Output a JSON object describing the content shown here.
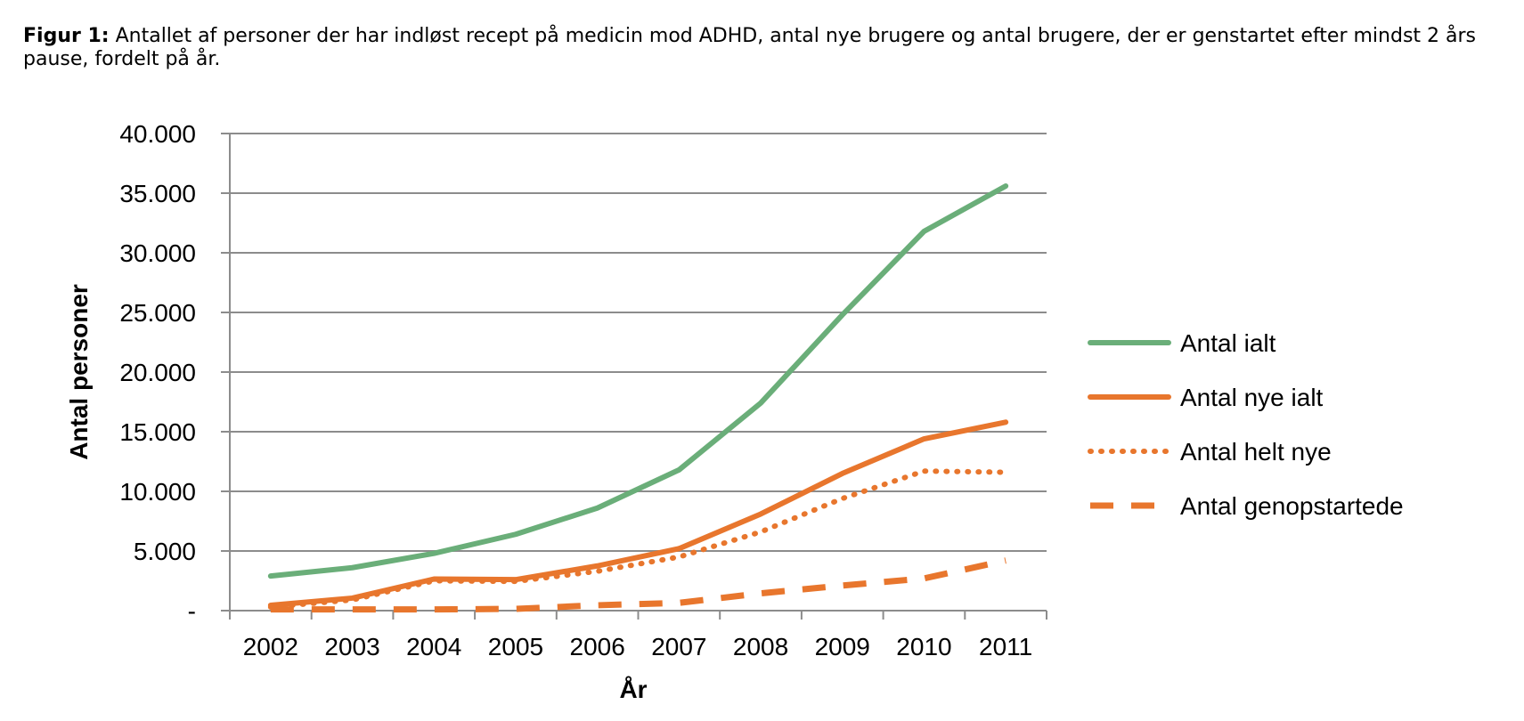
{
  "caption": {
    "label": "Figur 1:",
    "text": "Antallet af personer der har indløst recept på medicin mod ADHD, antal nye brugere og antal brugere, der er genstartet efter mindst 2 års pause, fordelt på år."
  },
  "chart_data": {
    "type": "line",
    "title": "",
    "xlabel": "År",
    "ylabel": "Antal personer",
    "categories": [
      "2002",
      "2003",
      "2004",
      "2005",
      "2006",
      "2007",
      "2008",
      "2009",
      "2010",
      "2011"
    ],
    "ylim": [
      0,
      40000
    ],
    "yticks": [
      0,
      5000,
      10000,
      15000,
      20000,
      25000,
      30000,
      35000,
      40000
    ],
    "ytick_labels": [
      "-",
      "5.000",
      "10.000",
      "15.000",
      "20.000",
      "25.000",
      "30.000",
      "35.000",
      "40.000"
    ],
    "grid": "horizontal",
    "legend_position": "right",
    "series": [
      {
        "name": "Antal ialt",
        "color": "#6aae79",
        "style": "solid",
        "values": [
          2900,
          3600,
          4800,
          6400,
          8600,
          11800,
          17400,
          24800,
          31800,
          35600
        ]
      },
      {
        "name": "Antal nye ialt",
        "color": "#e8762d",
        "style": "solid",
        "values": [
          450,
          1050,
          2650,
          2600,
          3750,
          5200,
          8100,
          11500,
          14400,
          15800
        ]
      },
      {
        "name": "Antal helt nye",
        "color": "#e8762d",
        "style": "dotted",
        "values": [
          300,
          900,
          2500,
          2450,
          3300,
          4500,
          6600,
          9400,
          11700,
          11600
        ]
      },
      {
        "name": "Antal genopstartede",
        "color": "#e8762d",
        "style": "dashed",
        "values": [
          100,
          100,
          100,
          150,
          450,
          650,
          1450,
          2100,
          2700,
          4200
        ]
      }
    ]
  }
}
